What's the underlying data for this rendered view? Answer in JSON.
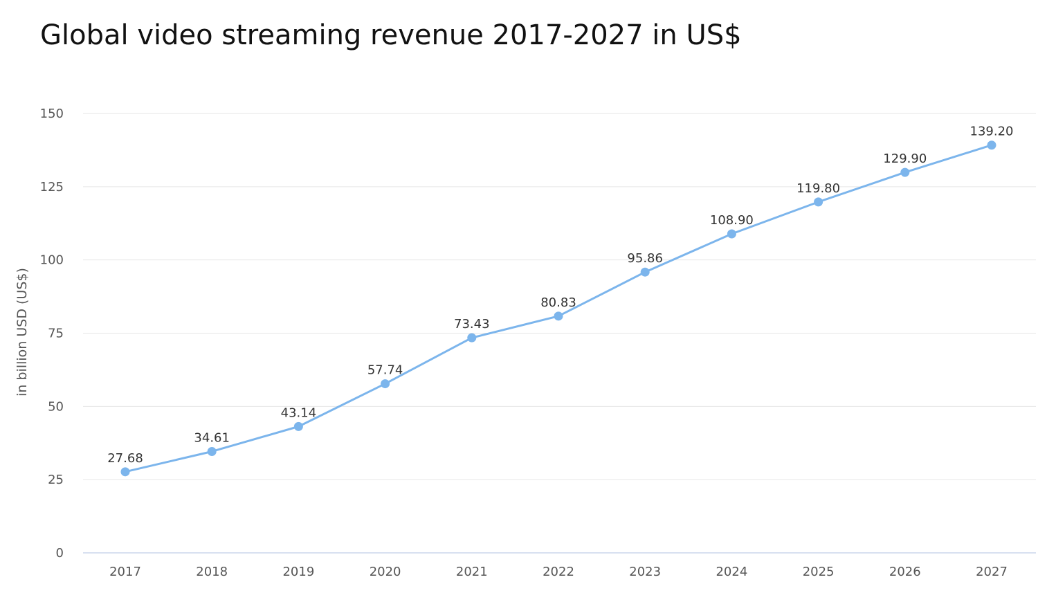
{
  "chart_data": {
    "type": "line",
    "title": "Global video streaming revenue 2017-2027 in US$",
    "xlabel": "",
    "ylabel": "in billion USD (US$)",
    "categories": [
      "2017",
      "2018",
      "2019",
      "2020",
      "2021",
      "2022",
      "2023",
      "2024",
      "2025",
      "2026",
      "2027"
    ],
    "values": [
      27.68,
      34.61,
      43.14,
      57.74,
      73.43,
      80.83,
      95.86,
      108.9,
      119.8,
      129.9,
      139.2
    ],
    "data_labels": [
      "27.68",
      "34.61",
      "43.14",
      "57.74",
      "73.43",
      "80.83",
      "95.86",
      "108.90",
      "119.80",
      "129.90",
      "139.20"
    ],
    "ylim": [
      0,
      150
    ],
    "yticks": [
      0,
      25,
      50,
      75,
      100,
      125,
      150
    ],
    "grid": true,
    "legend": "none",
    "colors": {
      "line": "#7cb5ec",
      "grid": "#e6e6e6",
      "axis": "#ccd6eb"
    }
  }
}
